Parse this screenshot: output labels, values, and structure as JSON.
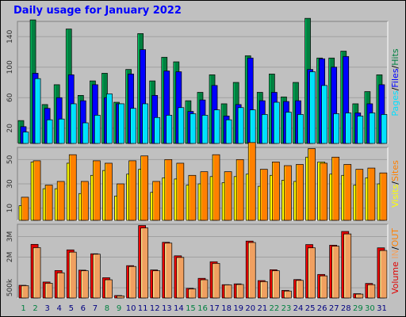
{
  "title": "Daily usage for January 2022",
  "colors": {
    "background": "#c0c0c0",
    "title": "#0000ff",
    "hits": "#008040",
    "files": "#0000ff",
    "pages": "#00e0ff",
    "visits": "#ffff00",
    "sites": "#ff8000",
    "kbytes": "#e00000",
    "kbytes_light": "#f0a060",
    "weekend_day": "#008040",
    "weekday_day": "#000080"
  },
  "chart_data": [
    {
      "type": "bar",
      "title": "Daily usage for January 2022",
      "panel": "top",
      "categories": [
        "1",
        "2",
        "3",
        "4",
        "5",
        "6",
        "7",
        "8",
        "9",
        "10",
        "11",
        "12",
        "13",
        "14",
        "15",
        "16",
        "17",
        "18",
        "19",
        "20",
        "21",
        "22",
        "23",
        "24",
        "25",
        "26",
        "27",
        "28",
        "29",
        "30",
        "31"
      ],
      "weekend_days": [
        "1",
        "2",
        "8",
        "9",
        "15",
        "16",
        "22",
        "23",
        "29",
        "30"
      ],
      "ylim": [
        0,
        160
      ],
      "yticks": [
        20,
        60,
        100,
        140
      ],
      "series": [
        {
          "name": "Hits",
          "color": "#008040",
          "values": [
            30,
            162,
            51,
            77,
            150,
            63,
            82,
            92,
            54,
            97,
            144,
            82,
            113,
            107,
            56,
            67,
            90,
            52,
            80,
            115,
            67,
            91,
            61,
            80,
            164,
            112,
            112,
            121,
            52,
            68,
            90
          ]
        },
        {
          "name": "Files",
          "color": "#0000ff",
          "values": [
            22,
            92,
            46,
            60,
            90,
            56,
            77,
            60,
            52,
            91,
            123,
            63,
            95,
            94,
            42,
            57,
            76,
            36,
            51,
            112,
            56,
            67,
            55,
            56,
            97,
            111,
            100,
            114,
            40,
            52,
            77
          ]
        },
        {
          "name": "Pages",
          "color": "#00e0ff",
          "values": [
            15,
            85,
            31,
            32,
            52,
            27,
            37,
            65,
            52,
            46,
            52,
            34,
            37,
            47,
            39,
            37,
            44,
            31,
            47,
            44,
            38,
            54,
            41,
            38,
            94,
            76,
            39,
            40,
            36,
            40,
            38
          ]
        }
      ],
      "right_label": [
        "Pages",
        "/",
        "Files",
        "/",
        "Hits"
      ]
    },
    {
      "type": "bar",
      "panel": "middle",
      "categories": [
        "1",
        "2",
        "3",
        "4",
        "5",
        "6",
        "7",
        "8",
        "9",
        "10",
        "11",
        "12",
        "13",
        "14",
        "15",
        "16",
        "17",
        "18",
        "19",
        "20",
        "21",
        "22",
        "23",
        "24",
        "25",
        "26",
        "27",
        "28",
        "29",
        "30",
        "31"
      ],
      "ylim": [
        0,
        60
      ],
      "yticks": [
        10,
        30,
        50
      ],
      "series": [
        {
          "name": "Visits",
          "color": "#ffff00",
          "values": [
            12,
            48,
            26,
            26,
            47,
            22,
            37,
            41,
            20,
            38,
            42,
            23,
            35,
            34,
            29,
            30,
            36,
            31,
            36,
            38,
            28,
            37,
            33,
            32,
            52,
            48,
            38,
            37,
            29,
            35,
            30
          ]
        },
        {
          "name": "Sites",
          "color": "#ff8000",
          "values": [
            19,
            49,
            29,
            32,
            54,
            32,
            49,
            47,
            30,
            49,
            53,
            32,
            50,
            47,
            37,
            40,
            54,
            40,
            50,
            64,
            42,
            48,
            45,
            46,
            59,
            47,
            52,
            46,
            42,
            43,
            39
          ]
        }
      ],
      "right_label": [
        "Visits",
        "/",
        "Sites"
      ]
    },
    {
      "type": "bar",
      "panel": "bottom",
      "categories": [
        "1",
        "2",
        "3",
        "4",
        "5",
        "6",
        "7",
        "8",
        "9",
        "10",
        "11",
        "12",
        "13",
        "14",
        "15",
        "16",
        "17",
        "18",
        "19",
        "20",
        "21",
        "22",
        "23",
        "24",
        "25",
        "26",
        "27",
        "28",
        "29",
        "30",
        "31"
      ],
      "ylim": [
        0,
        3600000
      ],
      "yticks": [
        "500k",
        "2M",
        "3M"
      ],
      "ytick_values": [
        500000,
        2000000,
        3000000
      ],
      "series": [
        {
          "name": "IN",
          "color": "#e00000",
          "values": [
            620000,
            2620000,
            780000,
            1340000,
            2350000,
            1360000,
            2160000,
            990000,
            120000,
            1580000,
            3540000,
            1370000,
            2720000,
            2060000,
            470000,
            960000,
            1770000,
            650000,
            690000,
            2780000,
            850000,
            1380000,
            370000,
            900000,
            2610000,
            1150000,
            2580000,
            3250000,
            210000,
            710000,
            2450000
          ]
        },
        {
          "name": "OUT",
          "color": "#f0a060",
          "values": [
            600000,
            2460000,
            720000,
            1230000,
            2240000,
            1330000,
            2140000,
            890000,
            100000,
            1540000,
            3420000,
            1330000,
            2680000,
            1980000,
            440000,
            890000,
            1690000,
            640000,
            660000,
            2710000,
            800000,
            1330000,
            340000,
            860000,
            2450000,
            1080000,
            2530000,
            3130000,
            190000,
            650000,
            2320000
          ]
        }
      ],
      "right_label": [
        "Volume",
        "IN",
        "/",
        "OUT"
      ]
    }
  ]
}
